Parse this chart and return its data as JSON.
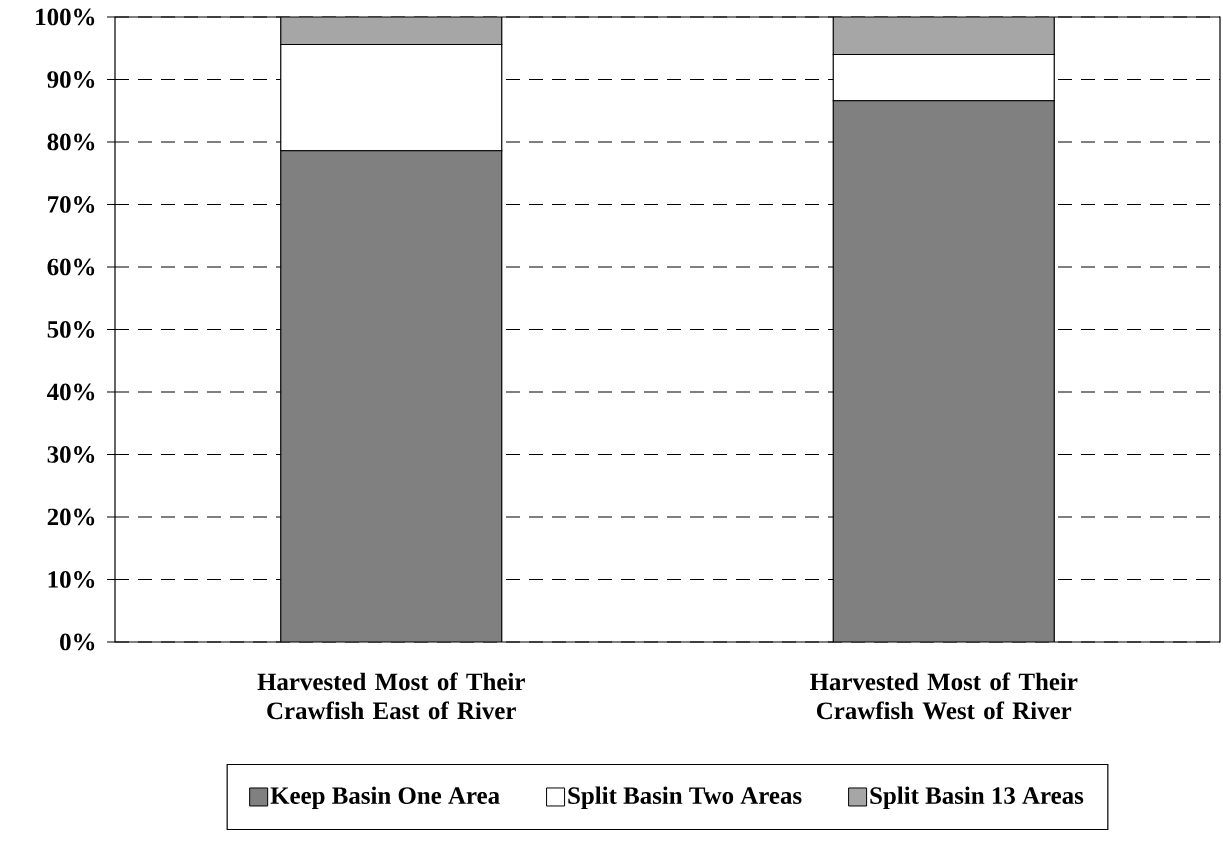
{
  "chart_data": {
    "type": "bar",
    "stacked": true,
    "categories": [
      "Harvested Most of Their Crawfish East of River",
      "Harvested Most of Their Crawfish West of River"
    ],
    "series": [
      {
        "name": "Keep Basin One Area",
        "color": "#808080",
        "values": [
          78.6,
          86.6
        ]
      },
      {
        "name": "Split Basin Two Areas",
        "color": "#ffffff",
        "values": [
          17.0,
          7.4
        ]
      },
      {
        "name": "Split Basin 13 Areas",
        "color": "#a6a6a6",
        "values": [
          4.4,
          6.0
        ]
      }
    ],
    "ylim": [
      0,
      100
    ],
    "yticks": [
      {
        "value": 0,
        "label": "0%"
      },
      {
        "value": 10,
        "label": "10%"
      },
      {
        "value": 20,
        "label": "20%"
      },
      {
        "value": 30,
        "label": "30%"
      },
      {
        "value": 40,
        "label": "40%"
      },
      {
        "value": 50,
        "label": "50%"
      },
      {
        "value": 60,
        "label": "60%"
      },
      {
        "value": 70,
        "label": "70%"
      },
      {
        "value": 80,
        "label": "80%"
      },
      {
        "value": 90,
        "label": "90%"
      },
      {
        "value": 100,
        "label": "100%"
      }
    ],
    "grid": "y",
    "legend": "bottom"
  }
}
